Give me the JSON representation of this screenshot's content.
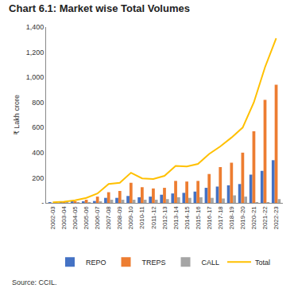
{
  "chart_data": {
    "type": "bar",
    "title": "Chart 6.1: Market wise Total Volumes",
    "y_label": "₹ Lakh crore",
    "source": "Source: CCIL.",
    "categories": [
      "2002-03",
      "2003-04",
      "2004-05",
      "2005-06",
      "2006-07",
      "2007-08",
      "2008-09",
      "2009-10",
      "2010-11",
      "2011-12",
      "2012-13",
      "2013-14",
      "2014-15",
      "2015-16",
      "2016-17",
      "2017-18",
      "2018-19",
      "2019-20",
      "2020-21",
      "2021-22",
      "2022-23"
    ],
    "series": [
      {
        "name": "REPO",
        "type": "bar",
        "color": "#4472c4",
        "values": [
          3,
          5,
          8,
          10,
          15,
          40,
          40,
          55,
          45,
          50,
          65,
          75,
          80,
          90,
          120,
          130,
          140,
          150,
          225,
          255,
          340
        ]
      },
      {
        "name": "TREPS",
        "type": "bar",
        "color": "#ed7d31",
        "values": [
          0,
          1,
          8,
          25,
          50,
          85,
          95,
          160,
          125,
          115,
          120,
          175,
          170,
          175,
          230,
          285,
          320,
          400,
          570,
          820,
          940
        ]
      },
      {
        "name": "CALL",
        "type": "bar",
        "color": "#a5a5a5",
        "values": [
          2,
          4,
          4,
          5,
          10,
          25,
          25,
          25,
          25,
          25,
          30,
          45,
          40,
          45,
          40,
          35,
          60,
          50,
          5,
          5,
          30
        ]
      },
      {
        "name": "Total",
        "type": "line",
        "color": "#ffc000",
        "values": [
          5,
          10,
          20,
          40,
          75,
          150,
          160,
          240,
          195,
          190,
          215,
          295,
          290,
          310,
          390,
          450,
          520,
          600,
          800,
          1080,
          1310
        ]
      }
    ],
    "ylim": [
      0,
      1400
    ],
    "yticks": [
      {
        "value": 0,
        "label": "-"
      },
      200,
      400,
      600,
      800,
      {
        "value": 1000,
        "label": "1,000"
      },
      {
        "value": 1200,
        "label": "1,200"
      },
      {
        "value": 1400,
        "label": "1,400"
      }
    ],
    "grid": false,
    "legend": "bottom"
  }
}
